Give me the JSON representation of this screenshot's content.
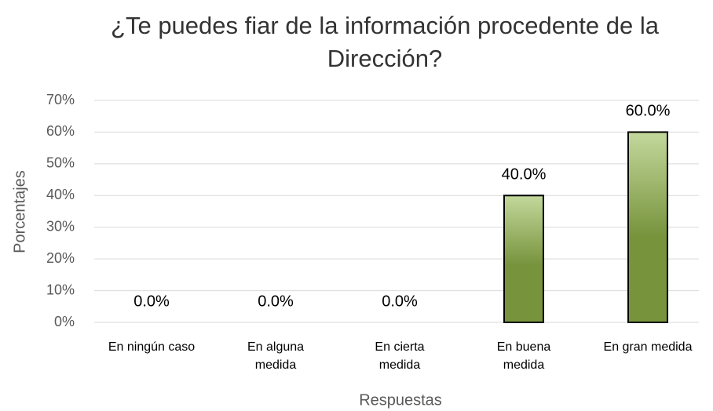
{
  "chart_data": {
    "type": "bar",
    "title": "¿Te puedes fiar de la información procedente de la Dirección?",
    "x_label": "Respuestas",
    "y_label": "Porcentajes",
    "categories": [
      "En ningún caso",
      "En alguna medida",
      "En cierta medida",
      "En buena medida",
      "En gran medida"
    ],
    "values": [
      0,
      0,
      0,
      40,
      60
    ],
    "value_labels": [
      "0.0%",
      "0.0%",
      "0.0%",
      "40.0%",
      "60.0%"
    ],
    "color": "#77933c",
    "ylim": [
      0,
      70
    ],
    "yticks": [
      {
        "value": 0,
        "label": "0%"
      },
      {
        "value": 10,
        "label": "10%"
      },
      {
        "value": 20,
        "label": "20%"
      },
      {
        "value": 30,
        "label": "30%"
      },
      {
        "value": 40,
        "label": "40%"
      },
      {
        "value": 50,
        "label": "50%"
      },
      {
        "value": 60,
        "label": "60%"
      },
      {
        "value": 70,
        "label": "70%"
      }
    ],
    "grid": true
  }
}
